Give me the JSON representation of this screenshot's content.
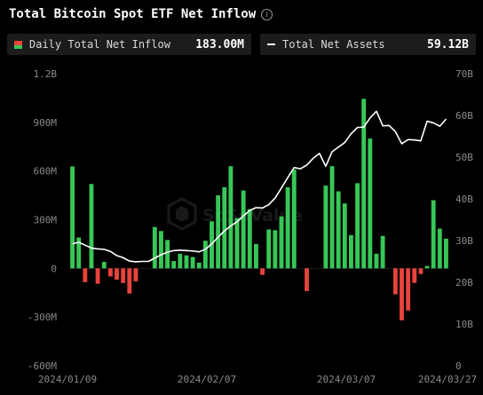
{
  "header": {
    "title": "Total Bitcoin Spot ETF Net Inflow",
    "info_icon": "info-icon"
  },
  "legend": {
    "inflow_label": "Daily Total Net Inflow",
    "inflow_value": "183.00M",
    "assets_label": "Total Net Assets",
    "assets_value": "59.12B"
  },
  "colors": {
    "positive": "#37c757",
    "negative": "#e8433b",
    "line": "#ffffff",
    "background": "#000000",
    "grid": "#1e1e1e"
  },
  "chart_data": {
    "type": "bar",
    "title": "Total Bitcoin Spot ETF Net Inflow",
    "x_tick_labels": [
      "2024/01/09",
      "2024/02/07",
      "2024/03/07",
      "2024/03/27"
    ],
    "y_left_tick_labels": [
      "1.2B",
      "900M",
      "600M",
      "300M",
      "0",
      "-300M",
      "-600M"
    ],
    "y_right_tick_labels": [
      "70B",
      "60B",
      "50B",
      "40B",
      "30B",
      "20B",
      "10B",
      "0"
    ],
    "ylim_left": [
      -600,
      1200
    ],
    "ylim_right": [
      0,
      70
    ],
    "grid": false,
    "series": [
      {
        "name": "Daily Total Net Inflow",
        "type": "bar",
        "unit": "M",
        "values": [
          628,
          190,
          -85,
          520,
          -95,
          40,
          -50,
          -70,
          -90,
          -155,
          -80,
          0,
          0,
          255,
          230,
          175,
          45,
          90,
          80,
          70,
          35,
          170,
          290,
          450,
          500,
          630,
          310,
          480,
          365,
          150,
          -40,
          240,
          235,
          320,
          500,
          610,
          0,
          -140,
          0,
          0,
          510,
          630,
          475,
          400,
          205,
          525,
          1045,
          800,
          90,
          200,
          0,
          -160,
          -320,
          -260,
          -90,
          -35,
          15,
          420,
          245,
          183
        ]
      },
      {
        "name": "Total Net Assets",
        "type": "line",
        "unit": "B",
        "values": [
          29.2,
          29.6,
          28.9,
          28.2,
          28.0,
          27.9,
          27.4,
          26.4,
          25.9,
          25.1,
          24.9,
          25.0,
          25.0,
          25.8,
          26.6,
          27.2,
          27.6,
          27.7,
          27.6,
          27.5,
          27.3,
          27.9,
          29.2,
          30.8,
          32.3,
          33.5,
          34.5,
          35.9,
          37.2,
          37.9,
          37.8,
          38.6,
          40.2,
          42.6,
          45.1,
          47.5,
          47.2,
          48.1,
          49.7,
          50.9,
          47.8,
          51.3,
          52.4,
          53.5,
          55.6,
          57.1,
          57.2,
          59.4,
          61.0,
          57.5,
          57.6,
          56.1,
          53.2,
          54.2,
          54.1,
          53.9,
          58.6,
          58.2,
          57.4,
          59.12
        ]
      }
    ]
  }
}
